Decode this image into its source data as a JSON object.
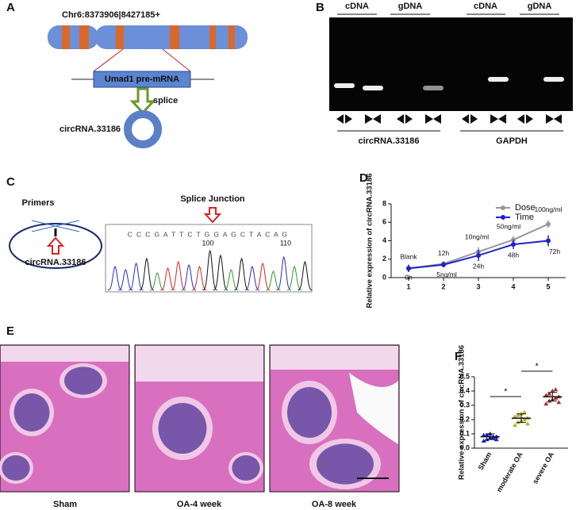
{
  "panel_labels": [
    "A",
    "B",
    "C",
    "D",
    "E",
    "F"
  ],
  "diagram_a": {
    "locus": "Chr6:8373906|8427185+",
    "gene": "Umad1 pre-mRNA",
    "step": "splice",
    "product": "circRNA.33186"
  },
  "gel_b": {
    "lanes": [
      "cDNA",
      "gDNA",
      "cDNA",
      "gDNA"
    ],
    "groups": [
      "circRNA.33186",
      "GAPDH"
    ]
  },
  "panel_c": {
    "primers": "Primers",
    "circ": "circRNA.33186",
    "junction": "Splice Junction",
    "sequence": "C C C G A T T C T G G A G C T A C A G",
    "positions": [
      "100",
      "110"
    ]
  },
  "panel_e": {
    "captions": [
      "Sham",
      "OA-4 week",
      "OA-8 week"
    ]
  },
  "chart_data": [
    {
      "type": "line",
      "ylabel": "Relative expression of circRNA.33186",
      "categories": [
        "1",
        "2",
        "3",
        "4",
        "5"
      ],
      "ylim": [
        0,
        8
      ],
      "yticks": [
        0,
        2,
        4,
        6,
        8
      ],
      "series": [
        {
          "name": "Dose",
          "color": "#999999",
          "values": [
            1.0,
            1.5,
            2.8,
            4.1,
            5.8
          ],
          "errors": [
            0.4,
            0.3,
            0.5,
            0.4,
            0.4
          ],
          "point_labels": [
            "Blank",
            "5ng/ml",
            "10ng/ml",
            "50ng/ml",
            "100ng/ml"
          ]
        },
        {
          "name": "Time",
          "color": "#2222cc",
          "values": [
            1.0,
            1.4,
            2.4,
            3.6,
            4.0
          ],
          "errors": [
            0.4,
            0.3,
            0.6,
            0.5,
            0.6
          ],
          "point_labels": [
            "0h",
            "12h",
            "24h",
            "48h",
            "72h"
          ]
        }
      ]
    },
    {
      "type": "dot",
      "ylabel": "Relative expression of circRNA.33186",
      "categories": [
        "Sham",
        "moderate OA",
        "severe OA"
      ],
      "ylim": [
        0,
        0.5
      ],
      "yticks": [
        {
          "value": 0,
          "label": "0.0"
        },
        {
          "value": 0.1,
          "label": "0.1"
        },
        {
          "value": 0.2,
          "label": "0.2"
        },
        {
          "value": 0.3,
          "label": "0.3"
        },
        {
          "value": 0.4,
          "label": "0.4"
        },
        {
          "value": 0.5,
          "label": "0.5"
        }
      ],
      "groups": [
        {
          "color": "#1a1ad0",
          "values": [
            0.05,
            0.06,
            0.07,
            0.08,
            0.08,
            0.09,
            0.09,
            0.1,
            0.07,
            0.06
          ],
          "mean": 0.08,
          "sd": 0.02
        },
        {
          "color": "#b5b52a",
          "values": [
            0.16,
            0.18,
            0.19,
            0.2,
            0.21,
            0.22,
            0.23,
            0.24,
            0.25,
            0.17
          ],
          "mean": 0.21,
          "sd": 0.03
        },
        {
          "color": "#a03030",
          "values": [
            0.31,
            0.33,
            0.34,
            0.35,
            0.36,
            0.37,
            0.38,
            0.4,
            0.41,
            0.32
          ],
          "mean": 0.36,
          "sd": 0.03
        }
      ],
      "significance": [
        "*",
        "*"
      ]
    }
  ]
}
